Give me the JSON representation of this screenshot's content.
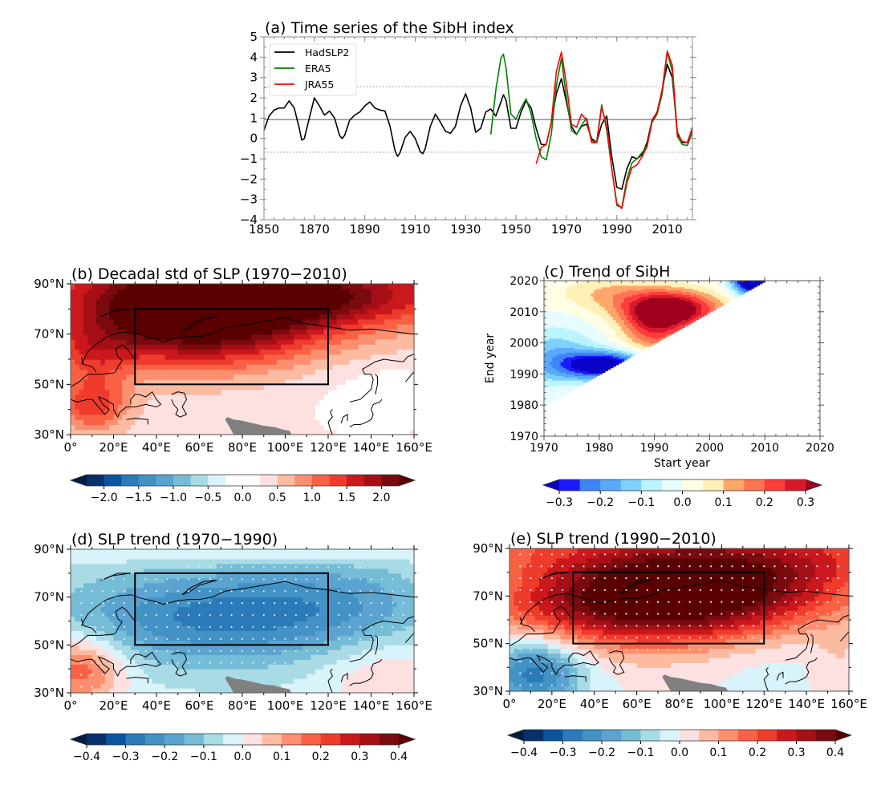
{
  "chart_data": [
    {
      "id": "a",
      "type": "line",
      "title": "(a) Time series of the SibH index",
      "xlabel": "",
      "ylabel": "",
      "xlim": [
        1850,
        2020
      ],
      "ylim": [
        -4,
        5
      ],
      "xticks": [
        1850,
        1870,
        1890,
        1910,
        1930,
        1950,
        1970,
        1990,
        2010
      ],
      "yticks": [
        -4,
        -3,
        -2,
        -1,
        0,
        1,
        2,
        3,
        4,
        5
      ],
      "legend": {
        "placement": "top-left",
        "entries": [
          "HadSLP2",
          "ERA5",
          "JRA55"
        ]
      },
      "reference_lines": [
        {
          "y": 0.93,
          "style": "solid",
          "color": "#555555"
        },
        {
          "y": 2.55,
          "style": "dashed",
          "color": "#aaaaaa"
        },
        {
          "y": -0.68,
          "style": "dashed",
          "color": "#aaaaaa"
        }
      ],
      "series": [
        {
          "name": "HadSLP2",
          "color": "#000000",
          "x": [
            1850,
            1852,
            1854,
            1856,
            1858,
            1860,
            1862,
            1864,
            1865,
            1866,
            1868,
            1870,
            1872,
            1874,
            1876,
            1878,
            1880,
            1881,
            1882,
            1884,
            1886,
            1888,
            1890,
            1892,
            1894,
            1896,
            1898,
            1900,
            1902,
            1903,
            1904,
            1906,
            1908,
            1910,
            1912,
            1913,
            1914,
            1916,
            1918,
            1920,
            1922,
            1924,
            1926,
            1928,
            1930,
            1932,
            1934,
            1936,
            1938,
            1940,
            1942,
            1944,
            1945,
            1946,
            1948,
            1950,
            1952,
            1954,
            1956,
            1958,
            1960,
            1962,
            1964,
            1966,
            1968,
            1970,
            1972,
            1974,
            1976,
            1978,
            1980,
            1982,
            1984,
            1986,
            1988,
            1990,
            1992,
            1994,
            1996,
            1998,
            2000,
            2002,
            2004,
            2006,
            2008,
            2010,
            2012,
            2014,
            2016,
            2018,
            2020
          ],
          "y": [
            0.4,
            1.1,
            1.4,
            1.5,
            1.5,
            1.85,
            1.5,
            0.5,
            -0.08,
            0.0,
            1.0,
            2.0,
            1.6,
            1.15,
            1.35,
            1.0,
            0.15,
            0.0,
            0.15,
            0.9,
            1.15,
            1.3,
            1.6,
            1.8,
            1.5,
            1.4,
            1.35,
            0.6,
            -0.6,
            -0.88,
            -0.7,
            0.05,
            0.35,
            0.0,
            -0.65,
            -0.75,
            -0.5,
            0.6,
            1.2,
            0.8,
            0.35,
            0.25,
            0.6,
            1.6,
            2.2,
            1.5,
            0.3,
            0.5,
            1.3,
            1.45,
            1.1,
            1.8,
            2.15,
            1.9,
            0.5,
            0.5,
            1.3,
            1.85,
            1.5,
            0.5,
            -0.3,
            -0.3,
            0.8,
            2.2,
            2.95,
            1.8,
            0.6,
            0.2,
            0.6,
            0.7,
            0.0,
            -0.2,
            0.7,
            1.1,
            -0.9,
            -2.4,
            -2.5,
            -1.5,
            -0.9,
            -1.0,
            -0.8,
            -0.2,
            0.9,
            1.3,
            2.4,
            3.65,
            3.0,
            0.3,
            -0.2,
            -0.2,
            0.5
          ]
        },
        {
          "name": "ERA5",
          "color": "#008000",
          "x": [
            1940,
            1942,
            1944,
            1945,
            1946,
            1948,
            1950,
            1952,
            1954,
            1956,
            1958,
            1960,
            1962,
            1964,
            1966,
            1968,
            1970,
            1972,
            1974,
            1976,
            1978,
            1980,
            1982,
            1984,
            1986,
            1988,
            1990,
            1992,
            1994,
            1996,
            1998,
            2000,
            2002,
            2004,
            2006,
            2008,
            2010,
            2012,
            2014,
            2016,
            2018,
            2020
          ],
          "y": [
            0.2,
            2.4,
            3.95,
            4.15,
            3.5,
            1.2,
            0.95,
            1.5,
            1.95,
            1.2,
            0.0,
            -0.9,
            -1.05,
            0.2,
            2.6,
            3.95,
            2.0,
            0.4,
            0.2,
            0.65,
            1.0,
            -0.1,
            -0.2,
            1.65,
            0.4,
            -1.5,
            -3.3,
            -3.4,
            -2.0,
            -1.2,
            -1.0,
            -0.7,
            -0.35,
            0.8,
            1.2,
            2.2,
            4.25,
            3.3,
            0.1,
            -0.3,
            -0.35,
            0.3
          ]
        },
        {
          "name": "JRA55",
          "color": "#ff0000",
          "x": [
            1958,
            1960,
            1962,
            1964,
            1966,
            1968,
            1970,
            1972,
            1974,
            1976,
            1978,
            1980,
            1982,
            1984,
            1986,
            1988,
            1990,
            1992,
            1994,
            1996,
            1998,
            2000,
            2002,
            2004,
            2006,
            2008,
            2010,
            2012,
            2014,
            2016,
            2018,
            2020
          ],
          "y": [
            -1.25,
            -0.45,
            -0.3,
            0.8,
            3.3,
            4.25,
            2.7,
            0.7,
            0.55,
            1.2,
            0.9,
            -0.2,
            -0.2,
            1.55,
            0.6,
            -1.5,
            -3.2,
            -3.45,
            -2.2,
            -1.45,
            -1.3,
            -0.9,
            -0.4,
            0.85,
            1.3,
            2.4,
            4.3,
            3.6,
            0.2,
            -0.15,
            -0.2,
            0.55
          ]
        }
      ]
    },
    {
      "id": "b",
      "type": "heatmap",
      "subtype": "map",
      "title": "(b) Decadal std of SLP (1970−2010)",
      "lon_range": [
        0,
        160
      ],
      "lat_range": [
        30,
        90
      ],
      "xticks": [
        "0°",
        "20°E",
        "40°E",
        "60°E",
        "80°E",
        "100°E",
        "120°E",
        "140°E",
        "160°E"
      ],
      "yticks": [
        "30°N",
        "50°N",
        "70°N",
        "90°N"
      ],
      "box": {
        "lon": [
          30,
          120
        ],
        "lat": [
          50,
          80
        ]
      },
      "stippling": false,
      "colorbar": {
        "range": [
          -2.25,
          2.25
        ],
        "ticks": [
          "−2.0",
          "−1.5",
          "−1.0",
          "−0.5",
          "0.0",
          "0.5",
          "1.0",
          "1.5",
          "2.0"
        ],
        "tick_values": [
          -2.0,
          -1.5,
          -1.0,
          -0.5,
          0.0,
          0.5,
          1.0,
          1.5,
          2.0
        ],
        "extend": "both",
        "colors": [
          "#08306b",
          "#0b559f",
          "#2b7bba",
          "#4292c6",
          "#5ba3d0",
          "#75bcd6",
          "#a8dbe5",
          "#d9f3fb",
          "#ffffff",
          "#ffffff",
          "#fde0e0",
          "#fcbba1",
          "#fc8f6f",
          "#f96044",
          "#ef3b2c",
          "#cb181d",
          "#a50f15",
          "#790a10"
        ],
        "extend_low": "#031c42",
        "extend_high": "#5a0000"
      },
      "description": "Maximum (>2.0) over northern Eurasia 30–120°E, 55–90°N; decreasing southward to ~0.3 near 30°N"
    },
    {
      "id": "c",
      "type": "heatmap",
      "title": "(c) Trend of SibH",
      "xlabel": "Start year",
      "ylabel": "End year",
      "xlim": [
        1970,
        2020
      ],
      "ylim": [
        1970,
        2020
      ],
      "xticks": [
        1970,
        1980,
        1990,
        2000,
        2010,
        2020
      ],
      "yticks": [
        1970,
        1980,
        1990,
        2000,
        2010,
        2020
      ],
      "valid_region": "end year >= start year + 10 (upper-left triangle)",
      "colorbar": {
        "range": [
          -0.3,
          0.3
        ],
        "ticks": [
          "−0.3",
          "−0.2",
          "−0.1",
          "0.0",
          "0.1",
          "0.2",
          "0.3"
        ],
        "tick_values": [
          -0.3,
          -0.2,
          -0.1,
          0.0,
          0.1,
          0.2,
          0.3
        ],
        "extend": "both",
        "colors": [
          "#1a1aff",
          "#3f84f5",
          "#5aa9fa",
          "#7dd1fc",
          "#baf5ff",
          "#e6fcff",
          "#fffde3",
          "#fff0b8",
          "#ffa76b",
          "#ff7452",
          "#ff3b3b",
          "#d61a2c"
        ],
        "extend_low": "#0a00c8",
        "extend_high": "#a0001e"
      },
      "features": [
        {
          "label": "strong negative",
          "start": [
            1975,
            1985
          ],
          "end": [
            1990,
            1996
          ],
          "value": -0.3
        },
        {
          "label": "strong positive",
          "start": [
            1987,
            2004
          ],
          "end": [
            2005,
            2015
          ],
          "value": 0.3
        },
        {
          "label": "negative corner",
          "start": [
            2006,
            2010
          ],
          "end": [
            2016,
            2020
          ],
          "value": -0.3
        }
      ]
    },
    {
      "id": "d",
      "type": "heatmap",
      "subtype": "map",
      "title": "(d) SLP trend (1970−1990)",
      "lon_range": [
        0,
        160
      ],
      "lat_range": [
        30,
        90
      ],
      "xticks": [
        "0°",
        "20°E",
        "40°E",
        "60°E",
        "80°E",
        "100°E",
        "120°E",
        "140°E",
        "160°E"
      ],
      "yticks": [
        "30°N",
        "50°N",
        "70°N",
        "90°N"
      ],
      "box": {
        "lon": [
          30,
          120
        ],
        "lat": [
          50,
          80
        ]
      },
      "stippling": true,
      "colorbar": {
        "range": [
          -0.4,
          0.4
        ],
        "ticks": [
          "−0.4",
          "−0.3",
          "−0.2",
          "−0.1",
          "0.0",
          "0.1",
          "0.2",
          "0.3",
          "0.4"
        ],
        "tick_values": [
          -0.4,
          -0.3,
          -0.2,
          -0.1,
          0.0,
          0.1,
          0.2,
          0.3,
          0.4
        ],
        "extend": "both",
        "colors": [
          "#08306b",
          "#0b559f",
          "#2b7bba",
          "#4292c6",
          "#5ba3d0",
          "#75bcd6",
          "#a8dbe5",
          "#d9f3fb",
          "#fde0e0",
          "#fcbba1",
          "#fc8f6f",
          "#f96044",
          "#ef3b2c",
          "#cb181d",
          "#a50f15",
          "#790a10"
        ],
        "extend_low": "#031c42",
        "extend_high": "#5a0000"
      },
      "description": "Negative (~-0.25) over Siberia box; positive (~+0.2) over Europe/Mediterranean 0–20°E, 30–50°N"
    },
    {
      "id": "e",
      "type": "heatmap",
      "subtype": "map",
      "title": "(e) SLP trend (1990−2010)",
      "lon_range": [
        0,
        160
      ],
      "lat_range": [
        30,
        90
      ],
      "xticks": [
        "0°",
        "20°E",
        "40°E",
        "60°E",
        "80°E",
        "100°E",
        "120°E",
        "140°E",
        "160°E"
      ],
      "yticks": [
        "30°N",
        "50°N",
        "70°N",
        "90°N"
      ],
      "box": {
        "lon": [
          30,
          120
        ],
        "lat": [
          50,
          80
        ]
      },
      "stippling": true,
      "colorbar": {
        "range": [
          -0.4,
          0.4
        ],
        "ticks": [
          "−0.4",
          "−0.3",
          "−0.2",
          "−0.1",
          "0.0",
          "0.1",
          "0.2",
          "0.3",
          "0.4"
        ],
        "tick_values": [
          -0.4,
          -0.3,
          -0.2,
          -0.1,
          0.0,
          0.1,
          0.2,
          0.3,
          0.4
        ],
        "extend": "both",
        "colors": [
          "#08306b",
          "#0b559f",
          "#2b7bba",
          "#4292c6",
          "#5ba3d0",
          "#75bcd6",
          "#a8dbe5",
          "#d9f3fb",
          "#fde0e0",
          "#fcbba1",
          "#fc8f6f",
          "#f96044",
          "#ef3b2c",
          "#cb181d",
          "#a50f15",
          "#790a10"
        ],
        "extend_low": "#031c42",
        "extend_high": "#5a0000"
      },
      "description": "Strong positive (>0.4) over Siberia box; negative (~-0.2) over Europe/Mediterranean"
    }
  ],
  "terrain_mask_color": "#808080"
}
